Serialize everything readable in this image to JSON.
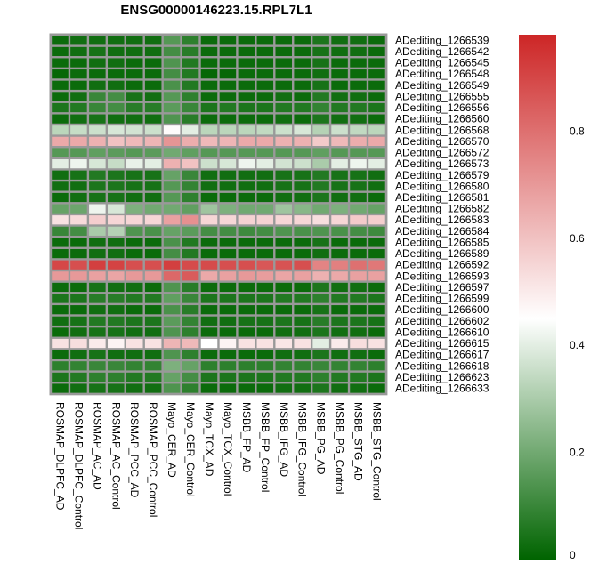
{
  "chart_data": {
    "type": "heatmap",
    "title": "ENSG00000146223.15.RPL7L1",
    "xlabel": "",
    "ylabel": "",
    "columns": [
      "ROSMAP_DLPFC_AD",
      "ROSMAP_DLPFC_Control",
      "ROSMAP_AC_AD",
      "ROSMAP_AC_Control",
      "ROSMAP_PCC_AD",
      "ROSMAP_PCC_Control",
      "Mayo_CER_AD",
      "Mayo_CER_Control",
      "Mayo_TCX_AD",
      "Mayo_TCX_Control",
      "MSBB_FP_AD",
      "MSBB_FP_Control",
      "MSBB_IFG_AD",
      "MSBB_IFG_Control",
      "MSBB_PG_AD",
      "MSBB_PG_Control",
      "MSBB_STG_AD",
      "MSBB_STG_Control"
    ],
    "rows": [
      "ADediting_1266539",
      "ADediting_1266542",
      "ADediting_1266545",
      "ADediting_1266548",
      "ADediting_1266549",
      "ADediting_1266555",
      "ADediting_1266556",
      "ADediting_1266560",
      "ADediting_1266568",
      "ADediting_1266570",
      "ADediting_1266572",
      "ADediting_1266573",
      "ADediting_1266579",
      "ADediting_1266580",
      "ADediting_1266581",
      "ADediting_1266582",
      "ADediting_1266583",
      "ADediting_1266584",
      "ADediting_1266585",
      "ADediting_1266589",
      "ADediting_1266592",
      "ADediting_1266593",
      "ADediting_1266597",
      "ADediting_1266599",
      "ADediting_1266600",
      "ADediting_1266602",
      "ADediting_1266610",
      "ADediting_1266615",
      "ADediting_1266617",
      "ADediting_1266618",
      "ADediting_1266623",
      "ADediting_1266633"
    ],
    "values": [
      [
        0.02,
        0.03,
        0.03,
        0.03,
        0.03,
        0.03,
        0.15,
        0.08,
        0.02,
        0.02,
        0.02,
        0.02,
        0.02,
        0.02,
        0.05,
        0.03,
        0.03,
        0.02
      ],
      [
        0.02,
        0.03,
        0.04,
        0.03,
        0.03,
        0.03,
        0.12,
        0.07,
        0.02,
        0.02,
        0.02,
        0.02,
        0.02,
        0.02,
        0.04,
        0.03,
        0.03,
        0.02
      ],
      [
        0.02,
        0.02,
        0.03,
        0.03,
        0.02,
        0.02,
        0.14,
        0.06,
        0.02,
        0.02,
        0.02,
        0.02,
        0.02,
        0.02,
        0.04,
        0.02,
        0.02,
        0.02
      ],
      [
        0.01,
        0.02,
        0.02,
        0.02,
        0.02,
        0.02,
        0.12,
        0.06,
        0.01,
        0.01,
        0.02,
        0.02,
        0.02,
        0.02,
        0.03,
        0.02,
        0.02,
        0.02
      ],
      [
        0.02,
        0.02,
        0.03,
        0.03,
        0.02,
        0.02,
        0.13,
        0.06,
        0.02,
        0.02,
        0.02,
        0.02,
        0.02,
        0.02,
        0.04,
        0.02,
        0.02,
        0.02
      ],
      [
        0.02,
        0.03,
        0.1,
        0.12,
        0.04,
        0.03,
        0.15,
        0.08,
        0.02,
        0.02,
        0.02,
        0.02,
        0.03,
        0.02,
        0.06,
        0.03,
        0.03,
        0.02
      ],
      [
        0.05,
        0.06,
        0.1,
        0.12,
        0.07,
        0.07,
        0.16,
        0.1,
        0.05,
        0.06,
        0.05,
        0.05,
        0.06,
        0.06,
        0.09,
        0.06,
        0.06,
        0.05
      ],
      [
        0.02,
        0.03,
        0.04,
        0.03,
        0.03,
        0.03,
        0.14,
        0.07,
        0.02,
        0.02,
        0.02,
        0.02,
        0.03,
        0.02,
        0.05,
        0.03,
        0.03,
        0.02
      ],
      [
        0.33,
        0.35,
        0.36,
        0.38,
        0.37,
        0.36,
        0.46,
        0.4,
        0.33,
        0.33,
        0.33,
        0.34,
        0.36,
        0.38,
        0.32,
        0.36,
        0.34,
        0.33
      ],
      [
        0.66,
        0.66,
        0.64,
        0.6,
        0.62,
        0.63,
        0.71,
        0.65,
        0.62,
        0.63,
        0.66,
        0.66,
        0.64,
        0.64,
        0.58,
        0.62,
        0.65,
        0.66
      ],
      [
        0.15,
        0.15,
        0.17,
        0.16,
        0.15,
        0.16,
        0.2,
        0.17,
        0.15,
        0.15,
        0.15,
        0.15,
        0.15,
        0.15,
        0.17,
        0.15,
        0.15,
        0.15
      ],
      [
        0.4,
        0.42,
        0.38,
        0.35,
        0.41,
        0.4,
        0.64,
        0.6,
        0.36,
        0.38,
        0.42,
        0.4,
        0.37,
        0.36,
        0.3,
        0.4,
        0.42,
        0.4
      ],
      [
        0.03,
        0.04,
        0.06,
        0.05,
        0.04,
        0.04,
        0.18,
        0.1,
        0.03,
        0.03,
        0.03,
        0.03,
        0.04,
        0.04,
        0.06,
        0.04,
        0.04,
        0.03
      ],
      [
        0.03,
        0.03,
        0.05,
        0.05,
        0.04,
        0.04,
        0.15,
        0.09,
        0.03,
        0.03,
        0.03,
        0.03,
        0.04,
        0.04,
        0.06,
        0.04,
        0.04,
        0.03
      ],
      [
        0.02,
        0.03,
        0.04,
        0.04,
        0.03,
        0.03,
        0.15,
        0.08,
        0.02,
        0.02,
        0.02,
        0.02,
        0.03,
        0.03,
        0.05,
        0.03,
        0.03,
        0.02
      ],
      [
        0.18,
        0.19,
        0.42,
        0.38,
        0.22,
        0.2,
        0.2,
        0.17,
        0.28,
        0.22,
        0.2,
        0.2,
        0.28,
        0.24,
        0.2,
        0.22,
        0.2,
        0.18
      ],
      [
        0.52,
        0.54,
        0.57,
        0.55,
        0.55,
        0.55,
        0.68,
        0.72,
        0.55,
        0.55,
        0.56,
        0.56,
        0.55,
        0.55,
        0.53,
        0.55,
        0.58,
        0.57
      ],
      [
        0.1,
        0.12,
        0.3,
        0.32,
        0.14,
        0.13,
        0.18,
        0.16,
        0.12,
        0.12,
        0.11,
        0.12,
        0.14,
        0.13,
        0.14,
        0.13,
        0.12,
        0.11
      ],
      [
        0.02,
        0.02,
        0.03,
        0.03,
        0.02,
        0.02,
        0.13,
        0.06,
        0.02,
        0.02,
        0.02,
        0.02,
        0.02,
        0.02,
        0.04,
        0.02,
        0.02,
        0.02
      ],
      [
        0.02,
        0.02,
        0.03,
        0.03,
        0.02,
        0.02,
        0.12,
        0.06,
        0.02,
        0.02,
        0.02,
        0.02,
        0.02,
        0.02,
        0.03,
        0.02,
        0.02,
        0.02
      ],
      [
        0.9,
        0.88,
        0.92,
        0.91,
        0.88,
        0.88,
        0.92,
        0.89,
        0.89,
        0.88,
        0.88,
        0.86,
        0.87,
        0.88,
        0.75,
        0.76,
        0.8,
        0.78
      ],
      [
        0.7,
        0.7,
        0.68,
        0.67,
        0.7,
        0.7,
        0.82,
        0.85,
        0.66,
        0.68,
        0.7,
        0.69,
        0.67,
        0.68,
        0.64,
        0.66,
        0.68,
        0.68
      ],
      [
        0.02,
        0.02,
        0.04,
        0.03,
        0.03,
        0.02,
        0.14,
        0.07,
        0.02,
        0.02,
        0.02,
        0.02,
        0.02,
        0.02,
        0.05,
        0.03,
        0.03,
        0.02
      ],
      [
        0.05,
        0.05,
        0.07,
        0.07,
        0.06,
        0.06,
        0.17,
        0.1,
        0.05,
        0.05,
        0.05,
        0.05,
        0.06,
        0.06,
        0.08,
        0.06,
        0.06,
        0.05
      ],
      [
        0.02,
        0.02,
        0.03,
        0.03,
        0.02,
        0.02,
        0.13,
        0.07,
        0.02,
        0.02,
        0.02,
        0.02,
        0.02,
        0.02,
        0.04,
        0.02,
        0.02,
        0.02
      ],
      [
        0.03,
        0.04,
        0.06,
        0.06,
        0.05,
        0.05,
        0.16,
        0.09,
        0.03,
        0.03,
        0.04,
        0.04,
        0.05,
        0.04,
        0.07,
        0.05,
        0.05,
        0.04
      ],
      [
        0.02,
        0.03,
        0.04,
        0.04,
        0.03,
        0.03,
        0.14,
        0.08,
        0.02,
        0.02,
        0.02,
        0.02,
        0.03,
        0.03,
        0.05,
        0.03,
        0.03,
        0.02
      ],
      [
        0.52,
        0.53,
        0.5,
        0.48,
        0.52,
        0.52,
        0.63,
        0.62,
        0.45,
        0.48,
        0.52,
        0.52,
        0.51,
        0.52,
        0.4,
        0.5,
        0.53,
        0.52
      ],
      [
        0.02,
        0.03,
        0.04,
        0.03,
        0.03,
        0.03,
        0.14,
        0.08,
        0.02,
        0.02,
        0.02,
        0.02,
        0.03,
        0.03,
        0.05,
        0.03,
        0.03,
        0.02
      ],
      [
        0.08,
        0.09,
        0.1,
        0.1,
        0.09,
        0.09,
        0.22,
        0.18,
        0.08,
        0.08,
        0.08,
        0.08,
        0.09,
        0.09,
        0.1,
        0.09,
        0.09,
        0.08
      ],
      [
        0.05,
        0.06,
        0.08,
        0.08,
        0.06,
        0.06,
        0.18,
        0.12,
        0.05,
        0.05,
        0.05,
        0.05,
        0.06,
        0.06,
        0.08,
        0.06,
        0.06,
        0.05
      ],
      [
        0.02,
        0.03,
        0.04,
        0.04,
        0.03,
        0.03,
        0.14,
        0.08,
        0.02,
        0.02,
        0.02,
        0.02,
        0.03,
        0.03,
        0.05,
        0.03,
        0.03,
        0.02
      ]
    ],
    "colorbar": {
      "range": [
        0,
        0.98
      ],
      "ticks": [
        0,
        0.2,
        0.4,
        0.6,
        0.8
      ],
      "tick_labels": [
        "0",
        "0.2",
        "0.4",
        "0.6",
        "0.8"
      ],
      "low_color": "#006400",
      "mid_color": "#ffffff",
      "high_color": "#cd2626",
      "mid_value": 0.45
    },
    "cell_border_color": "#999999"
  }
}
